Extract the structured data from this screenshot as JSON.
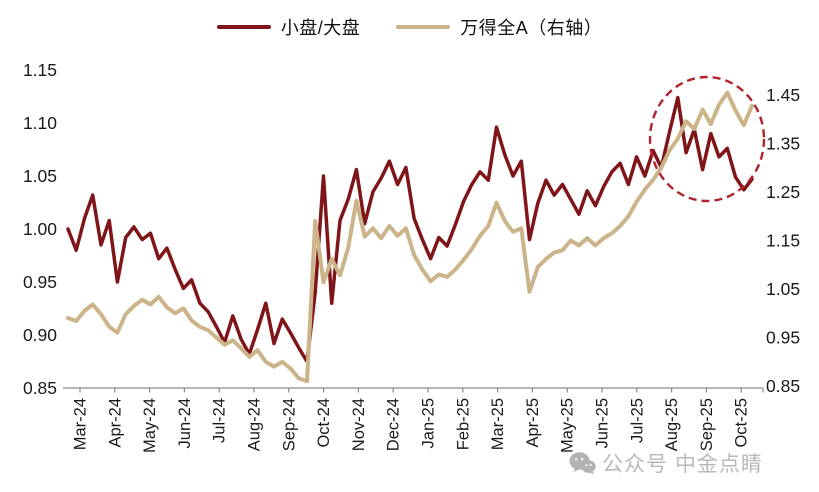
{
  "chart": {
    "legend": {
      "items": [
        {
          "label": "小盘/大盘",
          "color": "#801519"
        },
        {
          "label": "万得全A（右轴）",
          "color": "#CBB489"
        }
      ]
    },
    "watermark": {
      "text": "公众号 中金点睛",
      "icon": "wechat-icon"
    }
  },
  "chart_data": {
    "type": "line",
    "title": "",
    "xlabel": "",
    "ylabel_left": "",
    "ylabel_right": "",
    "grid": false,
    "legend_position": "top-center",
    "x_tick_labels": [
      "Mar-24",
      "Apr-24",
      "May-24",
      "Jun-24",
      "Jul-24",
      "Aug-24",
      "Sep-24",
      "Oct-24",
      "Nov-24",
      "Dec-24",
      "Jan-25",
      "Feb-25",
      "Mar-25",
      "Apr-25",
      "May-25",
      "Jun-25",
      "Jul-25",
      "Aug-25",
      "Sep-25",
      "Oct-25"
    ],
    "left_axis": {
      "min": 0.85,
      "max": 1.15,
      "tick_labels": [
        "1.15",
        "1.10",
        "1.05",
        "1.00",
        "0.95",
        "0.90",
        "0.85"
      ]
    },
    "right_axis": {
      "min": 0.85,
      "max": 1.45,
      "tick_labels": [
        "1.45",
        "1.35",
        "1.25",
        "1.15",
        "1.05",
        "0.95",
        "0.85"
      ]
    },
    "series": [
      {
        "name": "小盘/大盘",
        "axis": "left",
        "color": "#801519",
        "line_width": 3.5,
        "values": [
          1.0,
          0.98,
          1.01,
          1.032,
          0.985,
          1.008,
          0.95,
          0.992,
          1.002,
          0.99,
          0.996,
          0.972,
          0.982,
          0.962,
          0.944,
          0.952,
          0.93,
          0.922,
          0.908,
          0.893,
          0.918,
          0.896,
          0.882,
          0.905,
          0.93,
          0.892,
          0.915,
          0.902,
          0.888,
          0.875,
          0.94,
          1.05,
          0.93,
          1.008,
          1.028,
          1.056,
          1.005,
          1.035,
          1.048,
          1.064,
          1.042,
          1.058,
          1.01,
          0.99,
          0.972,
          0.992,
          0.984,
          1.004,
          1.026,
          1.042,
          1.054,
          1.046,
          1.096,
          1.07,
          1.05,
          1.064,
          0.99,
          1.024,
          1.046,
          1.032,
          1.042,
          1.028,
          1.014,
          1.036,
          1.022,
          1.04,
          1.054,
          1.062,
          1.042,
          1.068,
          1.05,
          1.074,
          1.058,
          1.092,
          1.124,
          1.072,
          1.094,
          1.056,
          1.09,
          1.068,
          1.076,
          1.049,
          1.037,
          1.047
        ]
      },
      {
        "name": "万得全A（右轴）",
        "axis": "right",
        "color": "#CBB489",
        "line_width": 4,
        "values": [
          0.99,
          0.984,
          1.005,
          1.018,
          0.998,
          0.972,
          0.96,
          0.998,
          1.015,
          1.028,
          1.018,
          1.034,
          1.012,
          1.0,
          1.01,
          0.985,
          0.972,
          0.965,
          0.95,
          0.935,
          0.944,
          0.928,
          0.91,
          0.924,
          0.9,
          0.89,
          0.9,
          0.886,
          0.866,
          0.86,
          1.19,
          1.064,
          1.112,
          1.078,
          1.135,
          1.232,
          1.158,
          1.175,
          1.155,
          1.18,
          1.16,
          1.175,
          1.12,
          1.09,
          1.066,
          1.08,
          1.075,
          1.09,
          1.11,
          1.132,
          1.16,
          1.18,
          1.228,
          1.19,
          1.168,
          1.175,
          1.044,
          1.095,
          1.112,
          1.125,
          1.13,
          1.15,
          1.14,
          1.155,
          1.14,
          1.155,
          1.165,
          1.18,
          1.2,
          1.23,
          1.255,
          1.275,
          1.3,
          1.336,
          1.36,
          1.396,
          1.38,
          1.42,
          1.39,
          1.43,
          1.455,
          1.418,
          1.388,
          1.428
        ]
      }
    ],
    "annotation": {
      "shape": "dashed-ellipse",
      "color": "#B02430",
      "highlight_range": "Sep-25 to Oct-25"
    }
  }
}
